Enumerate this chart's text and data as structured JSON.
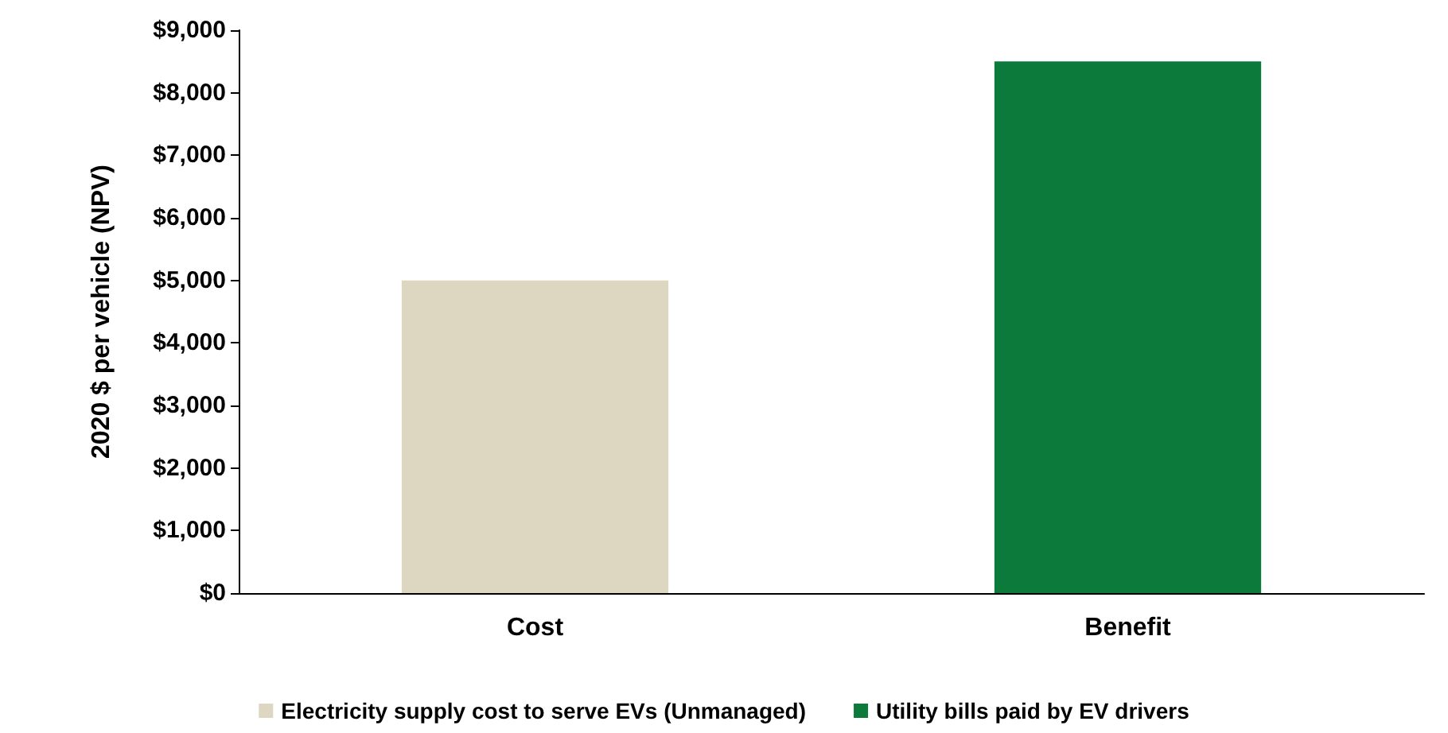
{
  "chart_data": {
    "type": "bar",
    "ylabel": "2020 $ per vehicle (NPV)",
    "categories": [
      "Cost",
      "Benefit"
    ],
    "series": [
      {
        "name": "Electricity supply cost to serve EVs (Unmanaged)",
        "color": "#ddd6c1",
        "values": [
          5000,
          null
        ]
      },
      {
        "name": "Utility bills paid by EV drivers",
        "color": "#0b7a3a",
        "values": [
          null,
          8500
        ]
      }
    ],
    "stacked": true,
    "ylim": [
      0,
      9000
    ],
    "yticks": [
      {
        "value": 0,
        "label": "$0"
      },
      {
        "value": 1000,
        "label": "$1,000"
      },
      {
        "value": 2000,
        "label": "$2,000"
      },
      {
        "value": 3000,
        "label": "$3,000"
      },
      {
        "value": 4000,
        "label": "$4,000"
      },
      {
        "value": 5000,
        "label": "$5,000"
      },
      {
        "value": 6000,
        "label": "$6,000"
      },
      {
        "value": 7000,
        "label": "$7,000"
      },
      {
        "value": 8000,
        "label": "$8,000"
      },
      {
        "value": 9000,
        "label": "$9,000"
      }
    ],
    "grid": false,
    "legend": "bottom"
  }
}
